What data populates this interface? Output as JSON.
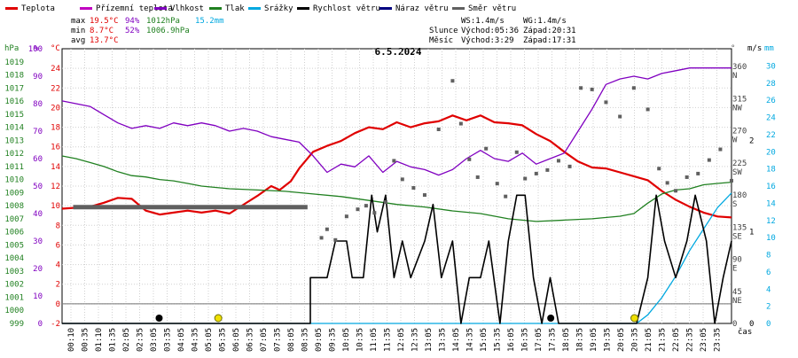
{
  "legend": [
    {
      "label": "Teplota",
      "color": "#e00000"
    },
    {
      "label": "Přízemní teplota",
      "color": "#c000c0"
    },
    {
      "label": "Vlhkost",
      "color": "#8000c0"
    },
    {
      "label": "Tlak",
      "color": "#208020"
    },
    {
      "label": "Srážky",
      "color": "#00a8e0"
    },
    {
      "label": "Rychlost větru",
      "color": "#000000"
    },
    {
      "label": "Náraz větru",
      "color": "#000080"
    },
    {
      "label": "Směr větru",
      "color": "#606060"
    }
  ],
  "stats": {
    "max_label": "max",
    "max_temp": "19.5°C",
    "max_hum": "94%",
    "max_press": "1012hPa",
    "rain": "15.2mm",
    "min_label": "min",
    "min_temp": "8.7°C",
    "min_hum": "52%",
    "min_press": "1006.9hPa",
    "avg_label": "avg",
    "avg_temp": "13.7°C"
  },
  "wind_info": {
    "ws": "WS:1.4m/s",
    "wg": "WG:1.4m/s",
    "sun_label": "Slunce",
    "sun_rise": "Východ:05:36",
    "sun_set": "Západ:20:31",
    "moon_label": "Měsíc",
    "moon_rise": "Východ:3:29",
    "moon_set": "Západ:17:31"
  },
  "axis_units": {
    "hpa": "hPa",
    "pct": "%",
    "deg": "°C",
    "dir": "°",
    "ms": "m/s",
    "mm": "mm",
    "time": "čas"
  },
  "chart_data": {
    "type": "line",
    "title": "6.5.2024",
    "x_range_hours": [
      0,
      24
    ],
    "x_ticks": [
      "00:10",
      "00:35",
      "01:10",
      "01:35",
      "02:05",
      "02:35",
      "03:05",
      "03:35",
      "04:05",
      "04:35",
      "05:05",
      "05:35",
      "06:05",
      "06:35",
      "07:05",
      "07:35",
      "08:05",
      "08:35",
      "09:05",
      "09:35",
      "10:05",
      "10:35",
      "11:05",
      "11:35",
      "12:05",
      "12:35",
      "13:05",
      "13:35",
      "14:05",
      "14:35",
      "15:05",
      "15:35",
      "16:05",
      "16:35",
      "17:05",
      "17:35",
      "18:05",
      "18:35",
      "19:05",
      "19:35",
      "20:05",
      "20:35",
      "21:05",
      "21:35",
      "22:05",
      "22:35",
      "23:05",
      "23:35"
    ],
    "axes": {
      "pressure_hpa": {
        "range": [
          999,
          1020
        ],
        "ticks": [
          "999",
          "1000",
          "1001",
          "1002",
          "1003",
          "1004",
          "1005",
          "1006",
          "1007",
          "1008",
          "1009",
          "1010",
          "1011",
          "1012",
          "1013",
          "1014",
          "1015",
          "1016",
          "1017",
          "1018",
          "1019"
        ]
      },
      "humidity_pct": {
        "range": [
          0,
          100
        ],
        "ticks": [
          "0",
          "10",
          "20",
          "30",
          "40",
          "50",
          "60",
          "70",
          "80",
          "90",
          "100"
        ]
      },
      "temperature_c": {
        "range": [
          -2,
          26
        ],
        "ticks": [
          "-2",
          "0",
          "2",
          "4",
          "6",
          "8",
          "10",
          "12",
          "14",
          "16",
          "18",
          "20",
          "22",
          "24"
        ]
      },
      "wind_dir_deg": {
        "range": [
          0,
          385
        ],
        "ticks": [
          "0",
          "45",
          "90",
          "135",
          "180",
          "225",
          "270",
          "315",
          "360"
        ],
        "labels": [
          "",
          "NE",
          "E",
          "SE",
          "S",
          "SW",
          "W",
          "NW",
          "N"
        ]
      },
      "wind_ms": {
        "range": [
          0,
          3
        ],
        "ticks": [
          "0",
          "1",
          "2"
        ]
      },
      "rain_mm": {
        "range": [
          0,
          32
        ],
        "ticks": [
          "0",
          "2",
          "4",
          "6",
          "8",
          "10",
          "12",
          "14",
          "16",
          "18",
          "20",
          "22",
          "24",
          "26",
          "28",
          "30"
        ]
      }
    },
    "series": [
      {
        "name": "Teplota",
        "unit": "°C",
        "axis": "temperature_c",
        "color": "#e00000",
        "points": [
          [
            0,
            9.7
          ],
          [
            1,
            9.9
          ],
          [
            1.5,
            10.3
          ],
          [
            2,
            10.8
          ],
          [
            2.5,
            10.7
          ],
          [
            3,
            9.5
          ],
          [
            3.5,
            9.1
          ],
          [
            4,
            9.3
          ],
          [
            4.5,
            9.5
          ],
          [
            5,
            9.3
          ],
          [
            5.5,
            9.5
          ],
          [
            6,
            9.2
          ],
          [
            6.5,
            10.1
          ],
          [
            7,
            11.0
          ],
          [
            7.5,
            12.0
          ],
          [
            7.8,
            11.6
          ],
          [
            8.2,
            12.5
          ],
          [
            8.5,
            13.8
          ],
          [
            9,
            15.5
          ],
          [
            9.5,
            16.1
          ],
          [
            10,
            16.6
          ],
          [
            10.5,
            17.4
          ],
          [
            11,
            18.0
          ],
          [
            11.5,
            17.8
          ],
          [
            12,
            18.5
          ],
          [
            12.5,
            18.0
          ],
          [
            13,
            18.4
          ],
          [
            13.5,
            18.6
          ],
          [
            14,
            19.2
          ],
          [
            14.5,
            18.7
          ],
          [
            15,
            19.2
          ],
          [
            15.5,
            18.5
          ],
          [
            16,
            18.4
          ],
          [
            16.5,
            18.2
          ],
          [
            17,
            17.3
          ],
          [
            17.5,
            16.6
          ],
          [
            18,
            15.5
          ],
          [
            18.5,
            14.5
          ],
          [
            19,
            13.9
          ],
          [
            19.5,
            13.8
          ],
          [
            20,
            13.4
          ],
          [
            20.5,
            13.0
          ],
          [
            21,
            12.6
          ],
          [
            21.5,
            11.5
          ],
          [
            22,
            10.6
          ],
          [
            22.5,
            9.9
          ],
          [
            23,
            9.3
          ],
          [
            23.5,
            8.9
          ],
          [
            24,
            8.8
          ]
        ]
      },
      {
        "name": "Vlhkost",
        "unit": "%",
        "axis": "humidity_pct",
        "color": "#8000c0",
        "points": [
          [
            0,
            81
          ],
          [
            1,
            79
          ],
          [
            1.5,
            76
          ],
          [
            2,
            73
          ],
          [
            2.5,
            71
          ],
          [
            3,
            72
          ],
          [
            3.5,
            71
          ],
          [
            4,
            73
          ],
          [
            4.5,
            72
          ],
          [
            5,
            73
          ],
          [
            5.5,
            72
          ],
          [
            6,
            70
          ],
          [
            6.5,
            71
          ],
          [
            7,
            70
          ],
          [
            7.5,
            68
          ],
          [
            8,
            67
          ],
          [
            8.5,
            66
          ],
          [
            9,
            61
          ],
          [
            9.5,
            55
          ],
          [
            10,
            58
          ],
          [
            10.5,
            57
          ],
          [
            11,
            61
          ],
          [
            11.5,
            55
          ],
          [
            12,
            59
          ],
          [
            12.5,
            57
          ],
          [
            13,
            56
          ],
          [
            13.5,
            54
          ],
          [
            14,
            56
          ],
          [
            14.5,
            60
          ],
          [
            15,
            63
          ],
          [
            15.5,
            60
          ],
          [
            16,
            59
          ],
          [
            16.5,
            62
          ],
          [
            17,
            58
          ],
          [
            17.5,
            60
          ],
          [
            18,
            62
          ],
          [
            18.5,
            70
          ],
          [
            19,
            78
          ],
          [
            19.5,
            87
          ],
          [
            20,
            89
          ],
          [
            20.5,
            90
          ],
          [
            21,
            89
          ],
          [
            21.5,
            91
          ],
          [
            22,
            92
          ],
          [
            22.5,
            93
          ],
          [
            23,
            93
          ],
          [
            23.5,
            93
          ],
          [
            24,
            93
          ]
        ]
      },
      {
        "name": "Tlak",
        "unit": "hPa",
        "axis": "pressure_hpa",
        "color": "#208020",
        "points": [
          [
            0,
            1011.8
          ],
          [
            0.5,
            1011.6
          ],
          [
            1,
            1011.3
          ],
          [
            1.5,
            1011.0
          ],
          [
            2,
            1010.6
          ],
          [
            2.5,
            1010.3
          ],
          [
            3,
            1010.2
          ],
          [
            3.5,
            1010.0
          ],
          [
            4,
            1009.9
          ],
          [
            4.5,
            1009.7
          ],
          [
            5,
            1009.5
          ],
          [
            5.5,
            1009.4
          ],
          [
            6,
            1009.3
          ],
          [
            7,
            1009.2
          ],
          [
            8,
            1009.1
          ],
          [
            9,
            1008.9
          ],
          [
            10,
            1008.7
          ],
          [
            11,
            1008.4
          ],
          [
            12,
            1008.1
          ],
          [
            13,
            1007.9
          ],
          [
            14,
            1007.6
          ],
          [
            15,
            1007.4
          ],
          [
            16,
            1007.0
          ],
          [
            17,
            1006.8
          ],
          [
            18,
            1006.9
          ],
          [
            19,
            1007.0
          ],
          [
            20,
            1007.2
          ],
          [
            20.5,
            1007.4
          ],
          [
            21,
            1008.2
          ],
          [
            21.5,
            1008.9
          ],
          [
            22,
            1009.2
          ],
          [
            22.5,
            1009.3
          ],
          [
            23,
            1009.6
          ],
          [
            23.5,
            1009.7
          ],
          [
            24,
            1009.8
          ]
        ]
      },
      {
        "name": "Srážky",
        "unit": "mm",
        "axis": "rain_mm",
        "color": "#00a8e0",
        "points": [
          [
            0,
            0
          ],
          [
            18.8,
            0
          ],
          [
            20.6,
            0
          ],
          [
            21,
            1
          ],
          [
            21.5,
            3
          ],
          [
            22,
            5.5
          ],
          [
            22.5,
            8.5
          ],
          [
            23,
            11
          ],
          [
            23.5,
            13.5
          ],
          [
            24,
            15.2
          ]
        ]
      },
      {
        "name": "Rychlost větru",
        "unit": "m/s",
        "axis": "wind_ms",
        "color": "#000000",
        "points": [
          [
            0,
            0
          ],
          [
            8.9,
            0
          ],
          [
            8.9,
            0.5
          ],
          [
            9.5,
            0.5
          ],
          [
            9.8,
            0.9
          ],
          [
            10.2,
            0.9
          ],
          [
            10.4,
            0.5
          ],
          [
            10.8,
            0.5
          ],
          [
            11.1,
            1.4
          ],
          [
            11.3,
            1.0
          ],
          [
            11.6,
            1.4
          ],
          [
            11.9,
            0.5
          ],
          [
            12.2,
            0.9
          ],
          [
            12.5,
            0.5
          ],
          [
            13,
            0.9
          ],
          [
            13.3,
            1.3
          ],
          [
            13.6,
            0.5
          ],
          [
            14,
            0.9
          ],
          [
            14.3,
            0
          ],
          [
            14.6,
            0.5
          ],
          [
            15,
            0.5
          ],
          [
            15.3,
            0.9
          ],
          [
            15.7,
            0
          ],
          [
            16,
            0.9
          ],
          [
            16.3,
            1.4
          ],
          [
            16.6,
            1.4
          ],
          [
            16.9,
            0.5
          ],
          [
            17.2,
            0
          ],
          [
            17.5,
            0.5
          ],
          [
            17.8,
            0
          ],
          [
            18,
            0
          ],
          [
            20.6,
            0
          ],
          [
            21,
            0.5
          ],
          [
            21.3,
            1.4
          ],
          [
            21.6,
            0.9
          ],
          [
            22,
            0.5
          ],
          [
            22.4,
            0.9
          ],
          [
            22.7,
            1.4
          ],
          [
            23.1,
            0.9
          ],
          [
            23.4,
            0
          ],
          [
            23.7,
            0.5
          ],
          [
            24,
            0.9
          ]
        ]
      }
    ],
    "wind_direction_deg": [
      [
        0.4,
        163
      ],
      [
        8.8,
        161
      ],
      [
        9.3,
        120
      ],
      [
        9.5,
        132
      ],
      [
        9.8,
        117
      ],
      [
        10.2,
        150
      ],
      [
        10.6,
        160
      ],
      [
        10.9,
        165
      ],
      [
        11.2,
        155
      ],
      [
        11.6,
        170
      ],
      [
        11.9,
        228
      ],
      [
        12.2,
        202
      ],
      [
        12.6,
        190
      ],
      [
        13,
        180
      ],
      [
        13.5,
        272
      ],
      [
        14,
        340
      ],
      [
        14.3,
        280
      ],
      [
        14.6,
        230
      ],
      [
        14.9,
        205
      ],
      [
        15.2,
        245
      ],
      [
        15.6,
        196
      ],
      [
        15.9,
        178
      ],
      [
        16.3,
        240
      ],
      [
        16.6,
        203
      ],
      [
        17,
        210
      ],
      [
        17.4,
        215
      ],
      [
        17.8,
        228
      ],
      [
        18.2,
        220
      ],
      [
        18.6,
        330
      ],
      [
        19,
        328
      ],
      [
        19.5,
        310
      ],
      [
        20,
        290
      ],
      [
        20.5,
        330
      ],
      [
        21,
        300
      ],
      [
        21.4,
        217
      ],
      [
        21.7,
        197
      ],
      [
        22,
        186
      ],
      [
        22.4,
        205
      ],
      [
        22.8,
        210
      ],
      [
        23.2,
        229
      ],
      [
        23.6,
        244
      ],
      [
        24,
        200
      ]
    ],
    "markers": {
      "moonrise": 3.48,
      "moonset": 17.52,
      "sunrise": 5.6,
      "sunset": 20.52
    }
  }
}
